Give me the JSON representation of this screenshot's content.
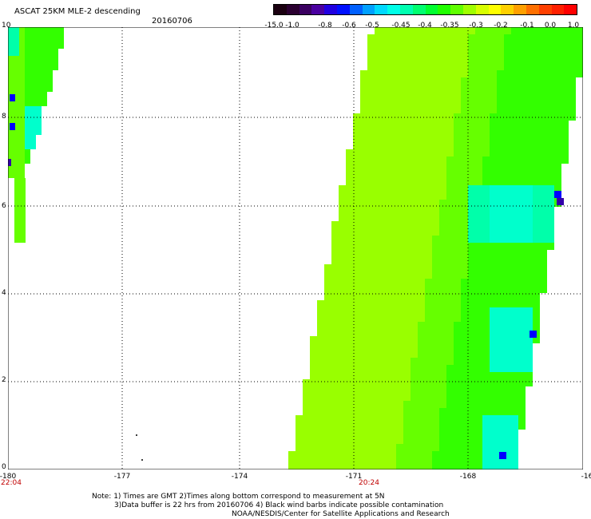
{
  "header": {
    "title": "ASCAT 25KM MLE-2 descending",
    "date": "20160706"
  },
  "colorbar": {
    "labels": [
      "-15.0",
      "-1.0",
      "-0.8",
      "-0.6",
      "-0.5",
      "-0.45",
      "-0.4",
      "-0.35",
      "-0.3",
      "-0.2",
      "-0.1",
      "0.0",
      "1.0"
    ],
    "colors": [
      "#1a0010",
      "#2a0030",
      "#3a0060",
      "#4a00a0",
      "#2000e0",
      "#0010ff",
      "#0060ff",
      "#00a0ff",
      "#00d8ff",
      "#00ffe8",
      "#00ffb0",
      "#00ff70",
      "#00ff30",
      "#20ff00",
      "#60ff00",
      "#a0ff00",
      "#d8ff00",
      "#ffff00",
      "#ffd000",
      "#ffa000",
      "#ff7000",
      "#ff4000",
      "#ff2000",
      "#ff0000"
    ]
  },
  "map": {
    "x_ticks": [
      "-180",
      "-177",
      "-174",
      "-171",
      "-168",
      "-16"
    ],
    "y_ticks": [
      "0",
      "2",
      "4",
      "6",
      "8",
      "10"
    ],
    "time_labels": [
      "22:04",
      "20:24"
    ],
    "swath_colors": {
      "base": "#99ff00",
      "green": "#33ff00",
      "mid": "#66ff00",
      "cyan": "#00ffcc",
      "aqua": "#00ffaa",
      "blue": "#0000ff",
      "purple": "#3300aa"
    }
  },
  "notes": {
    "line1": "Note: 1) Times are GMT 2)Times along bottom correspond to measurement at 5N",
    "line2": "3)Data buffer is 22 hrs from 20160706 4) Black wind barbs indicate possible contamination",
    "line3": "NOAA/NESDIS/Center for Satellite Applications and Research"
  }
}
